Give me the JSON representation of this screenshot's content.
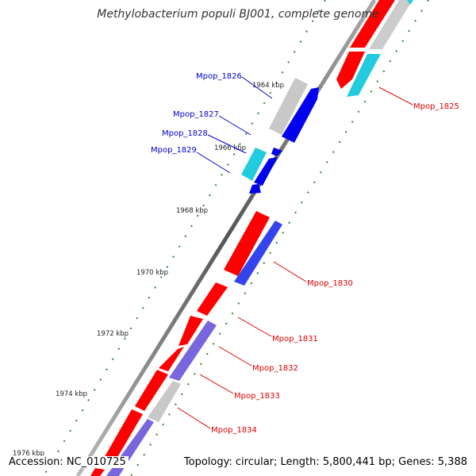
{
  "title": "Methylobacterium populi BJ001, complete genome",
  "footer": {
    "accession": "Accession: NC_010725",
    "topology": "Topology: circular; Length: 5,800,441 bp; Genes: 5,388"
  },
  "colors": {
    "red": "#ff0000",
    "blue": "#0000ee",
    "cyan": "#22ccdd",
    "gray": "#c8c8c8",
    "purple": "#7766dd",
    "label_red": "#dd0000",
    "label_blue": "#0000cc"
  },
  "ticks": [
    "1964 kbp",
    "1966 kbp",
    "1968 kbp",
    "1970 kbp",
    "1972 kbp",
    "1974 kbp",
    "1976 kbp"
  ],
  "genes_left": [
    "Mpop_1826",
    "Mpop_1827",
    "Mpop_1828",
    "Mpop_1829"
  ],
  "genes_right": [
    "Mpop_1825",
    "Mpop_1830",
    "Mpop_1831",
    "Mpop_1832",
    "Mpop_1833",
    "Mpop_1834"
  ]
}
